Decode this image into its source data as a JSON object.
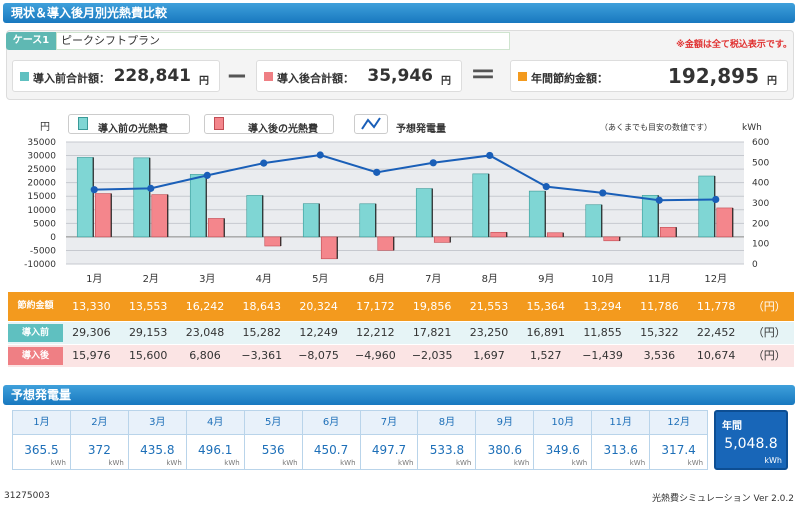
{
  "title": "現状＆導入後月別光熱費比較",
  "case": {
    "tag": "ケース1",
    "name": "ピークシフトプラン"
  },
  "tax_note": "※金額は全て税込表示です。",
  "summary": {
    "before": {
      "label": "導入前合計額：",
      "value": "228,841",
      "unit": "円"
    },
    "after": {
      "label": "導入後合計額：",
      "value": "35,946",
      "unit": "円"
    },
    "saving": {
      "label": "年間節約金額：",
      "value": "192,895",
      "unit": "円"
    },
    "minus_op": "−",
    "equal_op": "＝"
  },
  "legend": {
    "before": "導入前の光熱費",
    "after": "導入後の光熱費",
    "generation": "予想発電量",
    "note": "（あくまでも目安の数値です）"
  },
  "colors": {
    "before": "#7fd6d4",
    "after": "#f4868c",
    "line": "#1a5fb8",
    "saving": "#f39a1e",
    "header": "#1f82c8"
  },
  "chart_data": {
    "type": "bar",
    "categories": [
      "1月",
      "2月",
      "3月",
      "4月",
      "5月",
      "6月",
      "7月",
      "8月",
      "9月",
      "10月",
      "11月",
      "12月"
    ],
    "series": [
      {
        "name": "導入前の光熱費",
        "axis": "left",
        "values": [
          29306,
          29153,
          23048,
          15282,
          12249,
          12212,
          17821,
          23250,
          16891,
          11855,
          15322,
          22452
        ]
      },
      {
        "name": "導入後の光熱費",
        "axis": "left",
        "values": [
          15976,
          15600,
          6806,
          -3361,
          -8075,
          -4960,
          -2035,
          1697,
          1527,
          -1439,
          3536,
          10674
        ]
      },
      {
        "name": "予想発電量",
        "axis": "right",
        "type": "line",
        "values": [
          365.5,
          372,
          435.8,
          496.1,
          536,
          450.7,
          497.7,
          533.8,
          380.6,
          349.6,
          313.6,
          317.4
        ]
      }
    ],
    "ylabel": "円",
    "y2label": "kWh",
    "ylim": [
      -10000,
      35000
    ],
    "y2lim": [
      0,
      600
    ],
    "yticks": [
      "35000",
      "30000",
      "25000",
      "20000",
      "15000",
      "10000",
      "5000",
      "0",
      "-5000",
      "-10000"
    ],
    "y2ticks": [
      "600",
      "500",
      "400",
      "300",
      "200",
      "100",
      "0"
    ],
    "grid": true
  },
  "table": {
    "saving_head": "節約金額",
    "before_head": "導入前",
    "after_head": "導入後",
    "unit": "（円）",
    "saving": [
      "13,330",
      "13,553",
      "16,242",
      "18,643",
      "20,324",
      "17,172",
      "19,856",
      "21,553",
      "15,364",
      "13,294",
      "11,786",
      "11,778"
    ],
    "before": [
      "29,306",
      "29,153",
      "23,048",
      "15,282",
      "12,249",
      "12,212",
      "17,821",
      "23,250",
      "16,891",
      "11,855",
      "15,322",
      "22,452"
    ],
    "after": [
      "15,976",
      "15,600",
      "6,806",
      "−3,361",
      "−8,075",
      "−4,960",
      "−2,035",
      "1,697",
      "1,527",
      "−1,439",
      "3,536",
      "10,674"
    ]
  },
  "generation": {
    "title": "予想発電量",
    "months": [
      "1月",
      "2月",
      "3月",
      "4月",
      "5月",
      "6月",
      "7月",
      "8月",
      "9月",
      "10月",
      "11月",
      "12月"
    ],
    "values": [
      "365.5",
      "372",
      "435.8",
      "496.1",
      "536",
      "450.7",
      "497.7",
      "533.8",
      "380.6",
      "349.6",
      "313.6",
      "317.4"
    ],
    "unit": "kWh",
    "annual_label": "年間",
    "annual_value": "5,048.8",
    "annual_unit": "kWh"
  },
  "footer": {
    "id": "31275003",
    "app": "光熱費シミュレーション Ver 2.0.2"
  }
}
